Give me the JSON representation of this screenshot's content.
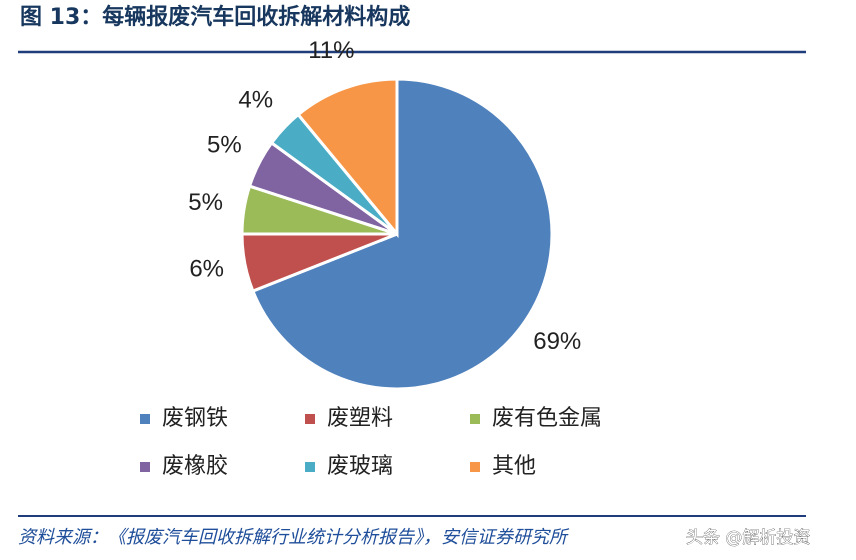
{
  "chart_data": {
    "type": "pie",
    "title": "图 13：每辆报废汽车回收拆解材料构成",
    "categories": [
      "废钢铁",
      "废塑料",
      "废有色金属",
      "废橡胶",
      "废玻璃",
      "其他"
    ],
    "values": [
      69,
      6,
      5,
      5,
      4,
      11
    ],
    "value_labels": [
      "69%",
      "6%",
      "5%",
      "5%",
      "4%",
      "11%"
    ],
    "colors": [
      "#4f81bd",
      "#c0504d",
      "#9bbb59",
      "#8064a2",
      "#4bacc6",
      "#f79646"
    ],
    "source": "资料来源：《报废汽车回收拆解行业统计分析报告》，安信证券研究所",
    "watermark": "头条 @解析投资"
  }
}
